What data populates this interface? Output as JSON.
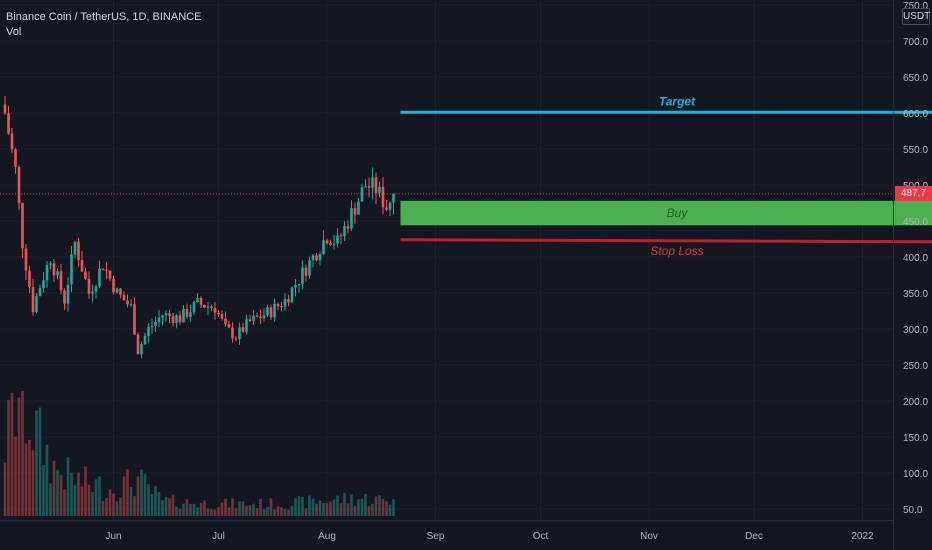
{
  "legend": {
    "symbol": "Binance Coin / TetherUS, 1D, BINANCE",
    "indicator": "Vol"
  },
  "price_axis": {
    "currency": "USDT",
    "current_price_label": "487.7",
    "current_price": 487.7,
    "badge_color": "#f23645"
  },
  "colors": {
    "up": "#26a69a",
    "down": "#ef5350",
    "target": "#1fb4d6",
    "buy": "#4caf50",
    "stop": "#c21e2b",
    "stop_text": "#e8343e",
    "buy_text": "#1b5e20"
  },
  "chart_data": {
    "type": "candlestick",
    "title": "Binance Coin / TetherUS, 1D, BINANCE",
    "ylim": [
      40,
      760
    ],
    "y_ticks": [
      50,
      100,
      150,
      200,
      250,
      300,
      350,
      400,
      450,
      500,
      550,
      600,
      650,
      700,
      750
    ],
    "y_tick_labels": [
      "50.0",
      "100.0",
      "150.0",
      "200.0",
      "250.0",
      "300.0",
      "350.0",
      "400.0",
      "450.0",
      "500.0",
      "550.0",
      "600.0",
      "650.0",
      "700.0",
      "750.0"
    ],
    "x_ticks": [
      {
        "label": "Jun",
        "day": 31
      },
      {
        "label": "Jul",
        "day": 61
      },
      {
        "label": "Aug",
        "day": 92
      },
      {
        "label": "Sep",
        "day": 123
      },
      {
        "label": "Oct",
        "day": 153
      },
      {
        "label": "Nov",
        "day": 184
      },
      {
        "label": "Dec",
        "day": 214
      },
      {
        "label": "2022",
        "day": 245
      }
    ],
    "anchors": [
      {
        "day": 0,
        "close": 600
      },
      {
        "day": 3,
        "close": 520
      },
      {
        "day": 5,
        "close": 420
      },
      {
        "day": 8,
        "close": 330
      },
      {
        "day": 10,
        "close": 360
      },
      {
        "day": 13,
        "close": 400
      },
      {
        "day": 17,
        "close": 340
      },
      {
        "day": 20,
        "close": 420
      },
      {
        "day": 24,
        "close": 350
      },
      {
        "day": 28,
        "close": 390
      },
      {
        "day": 32,
        "close": 350
      },
      {
        "day": 36,
        "close": 330
      },
      {
        "day": 38,
        "close": 270
      },
      {
        "day": 41,
        "close": 300
      },
      {
        "day": 45,
        "close": 320
      },
      {
        "day": 50,
        "close": 315
      },
      {
        "day": 55,
        "close": 335
      },
      {
        "day": 60,
        "close": 330
      },
      {
        "day": 63,
        "close": 300
      },
      {
        "day": 66,
        "close": 290
      },
      {
        "day": 70,
        "close": 310
      },
      {
        "day": 76,
        "close": 325
      },
      {
        "day": 80,
        "close": 340
      },
      {
        "day": 84,
        "close": 370
      },
      {
        "day": 88,
        "close": 400
      },
      {
        "day": 92,
        "close": 430
      },
      {
        "day": 95,
        "close": 420
      },
      {
        "day": 99,
        "close": 460
      },
      {
        "day": 103,
        "close": 500
      },
      {
        "day": 106,
        "close": 495
      },
      {
        "day": 109,
        "close": 470
      },
      {
        "day": 111,
        "close": 488
      }
    ],
    "volume_profile": [
      {
        "day": 0,
        "volume": 120
      },
      {
        "day": 4,
        "volume": 200
      },
      {
        "day": 8,
        "volume": 150
      },
      {
        "day": 14,
        "volume": 80
      },
      {
        "day": 20,
        "volume": 60
      },
      {
        "day": 30,
        "volume": 45
      },
      {
        "day": 38,
        "volume": 60
      },
      {
        "day": 45,
        "volume": 25
      },
      {
        "day": 60,
        "volume": 20
      },
      {
        "day": 80,
        "volume": 20
      },
      {
        "day": 100,
        "volume": 30
      },
      {
        "day": 111,
        "volume": 25
      }
    ],
    "drawings": [
      {
        "type": "horizontal_line",
        "label": "Target",
        "price": 601,
        "from_day": 113,
        "to_day": 271
      },
      {
        "type": "rectangle",
        "label": "Buy",
        "price_top": 478,
        "price_bottom": 444,
        "from_day": 113,
        "to_day": 271
      },
      {
        "type": "line",
        "label": "Stop Loss",
        "price_start": 424,
        "price_end": 421,
        "from_day": 113,
        "to_day": 271
      }
    ]
  }
}
